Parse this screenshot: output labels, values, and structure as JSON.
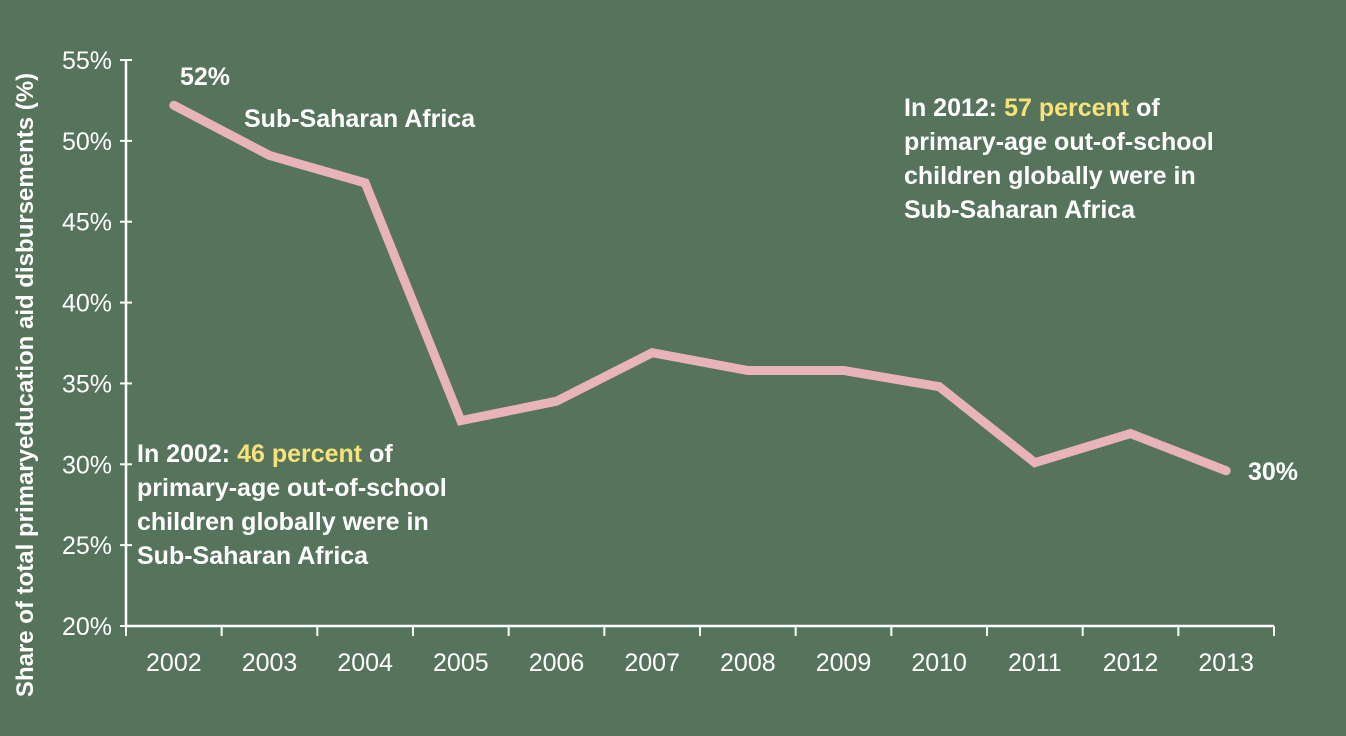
{
  "chart_data": {
    "type": "line",
    "ylabel": "Share of total primaryeducation aid disbursements (%)",
    "xlabel": "",
    "categories": [
      "2002",
      "2003",
      "2004",
      "2005",
      "2006",
      "2007",
      "2008",
      "2009",
      "2010",
      "2011",
      "2012",
      "2013"
    ],
    "series": [
      {
        "name": "Sub-Saharan Africa",
        "values": [
          52.2,
          49.1,
          47.4,
          32.7,
          33.9,
          36.9,
          35.8,
          35.8,
          34.8,
          30.1,
          31.9,
          29.6
        ]
      }
    ],
    "ylim": [
      20,
      55
    ],
    "yticks": [
      "20%",
      "25%",
      "30%",
      "35%",
      "40%",
      "45%",
      "50%",
      "55%"
    ],
    "grid": false,
    "line_color": "#e8b4b9",
    "background_color": "#56735c",
    "highlight_color": "#f7e37a",
    "data_labels": {
      "start": "52%",
      "end": "30%"
    },
    "annotations": {
      "series_label": "Sub-Saharan Africa",
      "note_2002": {
        "prefix": "In 2002: ",
        "highlight": "46 percent",
        "suffix": " of",
        "lines": [
          "primary-age out-of-school",
          "children globally were in",
          "Sub-Saharan Africa"
        ]
      },
      "note_2012": {
        "prefix": "In 2012: ",
        "highlight": "57 percent",
        "suffix": " of",
        "lines": [
          "primary-age out-of-school",
          "children globally were in",
          "Sub-Saharan Africa"
        ]
      }
    }
  }
}
